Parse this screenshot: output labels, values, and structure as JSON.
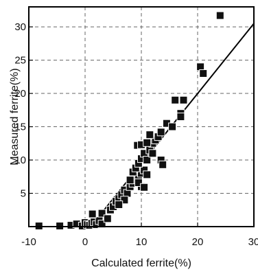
{
  "chart_data": {
    "type": "scatter",
    "xlabel": "Calculated ferrite(%)",
    "ylabel": "Measured ferrite(%)",
    "xlim": [
      -10,
      30
    ],
    "ylim": [
      0,
      33
    ],
    "xticks": [
      -10,
      0,
      10,
      20,
      30
    ],
    "yticks": [
      5,
      10,
      15,
      20,
      25,
      30
    ],
    "grid": true,
    "legend": "none",
    "colors": {
      "point_fill": "#111111",
      "point_stroke": "#ffffff",
      "grid": "#666666",
      "frame": "#000000",
      "fit_line": "#000000"
    },
    "series": [
      {
        "marker": "square",
        "points": [
          [
            -8.2,
            0.1
          ],
          [
            -4.5,
            0.1
          ],
          [
            -2.5,
            0.2
          ],
          [
            -1.5,
            0.4
          ],
          [
            -0.5,
            0.1
          ],
          [
            0.0,
            0.6
          ],
          [
            0.4,
            0.3
          ],
          [
            0.8,
            0.2
          ],
          [
            1.2,
            0.5
          ],
          [
            1.6,
            0.7
          ],
          [
            2.0,
            0.3
          ],
          [
            2.5,
            0.9
          ],
          [
            3.0,
            0.4
          ],
          [
            1.3,
            1.9
          ],
          [
            3.0,
            2.0
          ],
          [
            4.0,
            1.2
          ],
          [
            4.5,
            2.5
          ],
          [
            5.0,
            3.0
          ],
          [
            5.5,
            3.8
          ],
          [
            6.0,
            4.2
          ],
          [
            6.5,
            4.8
          ],
          [
            7.0,
            5.5
          ],
          [
            7.5,
            5.0
          ],
          [
            8.0,
            6.0
          ],
          [
            8.5,
            6.5
          ],
          [
            9.0,
            7.0
          ],
          [
            9.5,
            7.5
          ],
          [
            10.0,
            8.0
          ],
          [
            10.5,
            8.5
          ],
          [
            11.0,
            7.8
          ],
          [
            8.0,
            7.0
          ],
          [
            8.5,
            8.2
          ],
          [
            9.0,
            8.8
          ],
          [
            9.5,
            9.5
          ],
          [
            10.0,
            10.2
          ],
          [
            10.5,
            11.0
          ],
          [
            11.0,
            10.0
          ],
          [
            11.5,
            11.5
          ],
          [
            12.0,
            12.5
          ],
          [
            12.5,
            13.0
          ],
          [
            13.0,
            13.5
          ],
          [
            13.5,
            14.2
          ],
          [
            9.3,
            12.2
          ],
          [
            10.0,
            12.3
          ],
          [
            11.0,
            12.6
          ],
          [
            11.5,
            13.8
          ],
          [
            12.0,
            11.0
          ],
          [
            13.5,
            10.0
          ],
          [
            13.8,
            9.3
          ],
          [
            10.0,
            6.0
          ],
          [
            9.5,
            6.6
          ],
          [
            10.5,
            5.9
          ],
          [
            7.0,
            4.0
          ],
          [
            6.0,
            3.3
          ],
          [
            14.5,
            15.5
          ],
          [
            15.5,
            15.0
          ],
          [
            16.0,
            19.0
          ],
          [
            17.0,
            17.0
          ],
          [
            17.5,
            19.0
          ],
          [
            17.0,
            16.5
          ],
          [
            20.5,
            24.0
          ],
          [
            21.0,
            23.0
          ],
          [
            24.0,
            31.7
          ]
        ]
      }
    ],
    "fit_line": {
      "knee": [
        1.0,
        0.0
      ],
      "points": [
        [
          -10.0,
          0.0
        ],
        [
          1.0,
          0.0
        ],
        [
          30.0,
          30.5
        ]
      ]
    }
  }
}
